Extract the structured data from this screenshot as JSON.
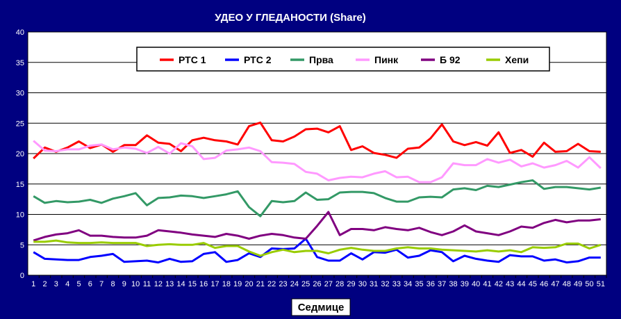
{
  "chart_data": {
    "type": "line",
    "title": "УДЕО У ГЛЕДАНОСТИ (Share)",
    "xlabel": "Седмице",
    "ylabel": "",
    "ylim": [
      0,
      40
    ],
    "y_ticks": [
      0,
      5,
      10,
      15,
      20,
      25,
      30,
      35,
      40
    ],
    "x": [
      1,
      2,
      3,
      4,
      5,
      6,
      7,
      8,
      9,
      10,
      11,
      12,
      13,
      14,
      15,
      16,
      17,
      18,
      19,
      20,
      21,
      22,
      23,
      24,
      25,
      26,
      27,
      28,
      29,
      30,
      31,
      32,
      33,
      34,
      35,
      36,
      37,
      38,
      39,
      40,
      41,
      42,
      43,
      44,
      45,
      46,
      47,
      48,
      49,
      50,
      51
    ],
    "grid": true,
    "legend_position": "top",
    "series": [
      {
        "name": "РТС 1",
        "color": "#ff0000",
        "values": [
          19.2,
          21.0,
          20.3,
          21.0,
          22.0,
          20.9,
          21.5,
          20.3,
          21.4,
          21.4,
          23.0,
          21.8,
          21.6,
          20.4,
          22.2,
          22.6,
          22.2,
          22.0,
          21.5,
          24.5,
          25.1,
          22.2,
          22.0,
          22.8,
          24.0,
          24.1,
          23.5,
          24.5,
          20.6,
          21.2,
          20.1,
          19.8,
          19.3,
          20.8,
          21.0,
          22.5,
          24.8,
          22.0,
          21.4,
          21.9,
          21.3,
          23.5,
          20.1,
          20.6,
          19.5,
          21.8,
          20.3,
          20.4,
          21.6,
          20.4,
          20.3
        ]
      },
      {
        "name": "РТС 2",
        "color": "#0000ff",
        "values": [
          3.8,
          2.7,
          2.6,
          2.5,
          2.5,
          3.0,
          3.2,
          3.5,
          2.2,
          2.3,
          2.4,
          2.1,
          2.7,
          2.2,
          2.3,
          3.5,
          3.8,
          2.2,
          2.5,
          3.6,
          3.0,
          4.4,
          4.3,
          4.4,
          6.0,
          3.0,
          2.4,
          2.4,
          3.6,
          2.6,
          3.8,
          3.7,
          4.2,
          2.9,
          3.2,
          4.1,
          3.8,
          2.3,
          3.2,
          2.7,
          2.4,
          2.2,
          3.3,
          3.1,
          3.1,
          2.4,
          2.6,
          2.1,
          2.3,
          2.9,
          2.9
        ]
      },
      {
        "name": "Прва",
        "color": "#339966",
        "values": [
          13.0,
          11.9,
          12.2,
          12.0,
          12.1,
          12.4,
          11.9,
          12.6,
          13.0,
          13.5,
          11.5,
          12.7,
          12.8,
          13.1,
          13.0,
          12.7,
          13.0,
          13.3,
          13.8,
          11.2,
          9.7,
          12.2,
          12.0,
          12.2,
          13.6,
          12.4,
          12.5,
          13.6,
          13.7,
          13.7,
          13.5,
          12.7,
          12.1,
          12.1,
          12.8,
          12.9,
          12.8,
          14.1,
          14.3,
          14.0,
          14.7,
          14.5,
          14.9,
          15.3,
          15.6,
          14.2,
          14.5,
          14.5,
          14.3,
          14.1,
          14.4
        ]
      },
      {
        "name": "Пинк",
        "color": "#ff99ff",
        "values": [
          22.1,
          20.5,
          20.4,
          20.7,
          20.7,
          21.3,
          21.5,
          20.7,
          21.0,
          20.8,
          20.1,
          21.1,
          20.0,
          21.7,
          21.2,
          19.1,
          19.3,
          20.5,
          20.7,
          21.0,
          20.4,
          18.6,
          18.5,
          18.3,
          17.0,
          16.7,
          15.6,
          16.0,
          16.2,
          16.1,
          16.7,
          17.1,
          16.1,
          16.2,
          15.3,
          15.3,
          16.1,
          18.4,
          18.1,
          18.1,
          19.1,
          18.5,
          19.0,
          17.9,
          18.4,
          17.7,
          18.1,
          18.8,
          17.7,
          19.4,
          17.6
        ]
      },
      {
        "name": "Б 92",
        "color": "#800080",
        "values": [
          5.7,
          6.3,
          6.7,
          6.9,
          7.4,
          6.5,
          6.5,
          6.3,
          6.2,
          6.2,
          6.5,
          7.4,
          7.2,
          7.0,
          6.7,
          6.5,
          6.3,
          6.8,
          6.5,
          6.0,
          6.5,
          6.8,
          6.6,
          6.2,
          6.0,
          8.1,
          10.4,
          6.6,
          7.6,
          7.6,
          7.4,
          7.9,
          7.6,
          7.4,
          7.8,
          7.1,
          6.6,
          7.2,
          8.2,
          7.2,
          6.9,
          6.6,
          7.2,
          8.0,
          7.8,
          8.6,
          9.1,
          8.7,
          9.0,
          9.0,
          9.2
        ]
      },
      {
        "name": "Хепи",
        "color": "#99cc00",
        "values": [
          5.5,
          5.5,
          5.7,
          5.4,
          5.3,
          5.3,
          5.4,
          5.3,
          5.3,
          5.3,
          4.8,
          5.0,
          5.1,
          5.0,
          5.0,
          5.3,
          4.5,
          4.8,
          4.8,
          3.9,
          3.2,
          3.8,
          4.2,
          3.8,
          4.0,
          4.0,
          3.6,
          4.2,
          4.5,
          4.2,
          4.0,
          4.0,
          4.4,
          4.6,
          4.4,
          4.4,
          4.2,
          4.1,
          4.0,
          3.9,
          4.1,
          3.9,
          4.1,
          3.8,
          4.6,
          4.5,
          4.6,
          5.2,
          5.2,
          4.4,
          5.0
        ]
      }
    ]
  }
}
